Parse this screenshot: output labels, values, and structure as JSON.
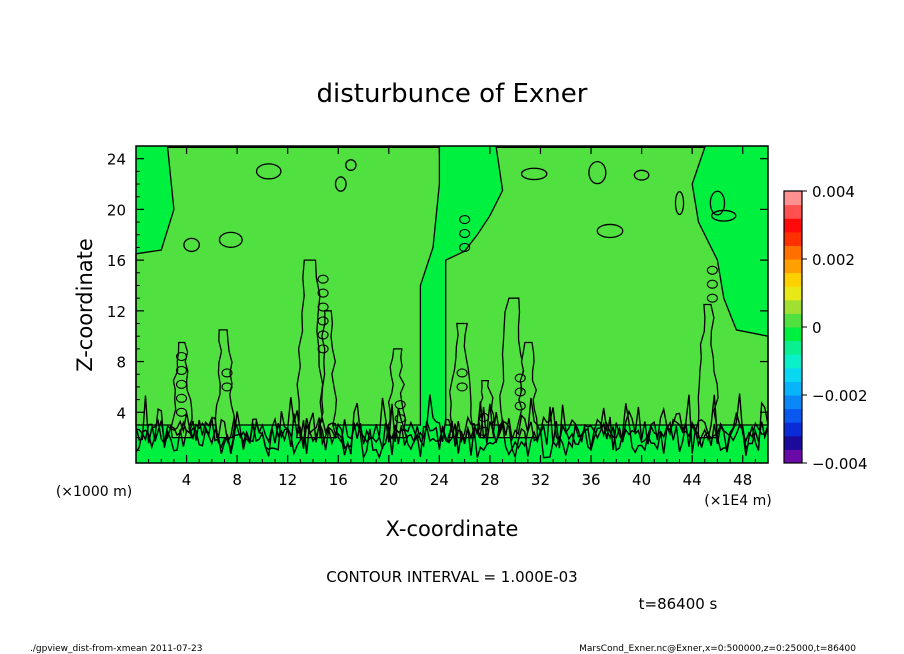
{
  "chart_data": {
    "type": "heatmap",
    "title": "disturbunce of Exner",
    "xlabel": "X-coordinate",
    "ylabel": "Z-coordinate",
    "x_unit_left": "(×1000 m)",
    "x_unit_right": "(×1E4 m)",
    "xlim": [
      0,
      50
    ],
    "ylim": [
      0,
      25
    ],
    "x_ticks": [
      4,
      8,
      12,
      16,
      20,
      24,
      28,
      32,
      36,
      40,
      44,
      48
    ],
    "y_ticks": [
      4,
      8,
      12,
      16,
      20,
      24
    ],
    "grid": false,
    "colorbar": {
      "ticks": [
        {
          "value": 0.004,
          "label": "0.004"
        },
        {
          "value": 0.002,
          "label": "0.002"
        },
        {
          "value": 0,
          "label": "0"
        },
        {
          "value": -0.002,
          "label": "−0.002"
        },
        {
          "value": -0.004,
          "label": "−0.004"
        }
      ],
      "range": [
        -0.004,
        0.004
      ],
      "colors": [
        "#6a0aa8",
        "#1c0a9a",
        "#0a2cd8",
        "#0a58f0",
        "#0a88f8",
        "#0ab4fa",
        "#0ad8f0",
        "#0af0c8",
        "#0af090",
        "#00f040",
        "#50e040",
        "#a0e030",
        "#e8e818",
        "#ffd000",
        "#ffa000",
        "#ff7000",
        "#ff3000",
        "#ff0a0a",
        "#ff5050",
        "#ff9090"
      ]
    },
    "fill_colors": {
      "background": "#00f040",
      "positive": "#50e040",
      "negative": "#0ad8f0"
    },
    "contour_interval_label": "CONTOUR INTERVAL = 1.000E-03",
    "time_label": "t=86400 s"
  },
  "footer": {
    "left": "./gpview_dist-from-xmean  2011-07-23",
    "right": "MarsCond_Exner.nc@Exner,x=0:500000,z=0:25000,t=86400"
  }
}
